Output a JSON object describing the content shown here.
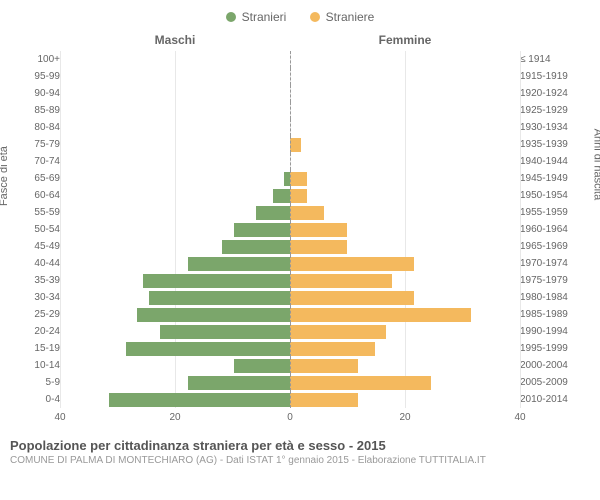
{
  "legend": {
    "male": {
      "label": "Stranieri",
      "color": "#7ba66b"
    },
    "female": {
      "label": "Straniere",
      "color": "#f4b95e"
    }
  },
  "headers": {
    "male": "Maschi",
    "female": "Femmine"
  },
  "axis": {
    "left_label": "Fasce di età",
    "right_label": "Anni di nascita",
    "max": 40,
    "ticks": [
      40,
      20,
      0,
      20,
      40
    ]
  },
  "colors": {
    "male_bar": "#7ba66b",
    "female_bar": "#f4b95e",
    "grid": "#e8e8e8",
    "text": "#666666",
    "background": "#ffffff"
  },
  "rows": [
    {
      "age": "100+",
      "year": "≤ 1914",
      "m": 0,
      "f": 0
    },
    {
      "age": "95-99",
      "year": "1915-1919",
      "m": 0,
      "f": 0
    },
    {
      "age": "90-94",
      "year": "1920-1924",
      "m": 0,
      "f": 0
    },
    {
      "age": "85-89",
      "year": "1925-1929",
      "m": 0,
      "f": 0
    },
    {
      "age": "80-84",
      "year": "1930-1934",
      "m": 0,
      "f": 0
    },
    {
      "age": "75-79",
      "year": "1935-1939",
      "m": 0,
      "f": 2
    },
    {
      "age": "70-74",
      "year": "1940-1944",
      "m": 0,
      "f": 0
    },
    {
      "age": "65-69",
      "year": "1945-1949",
      "m": 1,
      "f": 3
    },
    {
      "age": "60-64",
      "year": "1950-1954",
      "m": 3,
      "f": 3
    },
    {
      "age": "55-59",
      "year": "1955-1959",
      "m": 6,
      "f": 6
    },
    {
      "age": "50-54",
      "year": "1960-1964",
      "m": 10,
      "f": 10
    },
    {
      "age": "45-49",
      "year": "1965-1969",
      "m": 12,
      "f": 10
    },
    {
      "age": "40-44",
      "year": "1970-1974",
      "m": 18,
      "f": 22
    },
    {
      "age": "35-39",
      "year": "1975-1979",
      "m": 26,
      "f": 18
    },
    {
      "age": "30-34",
      "year": "1980-1984",
      "m": 25,
      "f": 22
    },
    {
      "age": "25-29",
      "year": "1985-1989",
      "m": 27,
      "f": 32
    },
    {
      "age": "20-24",
      "year": "1990-1994",
      "m": 23,
      "f": 17
    },
    {
      "age": "15-19",
      "year": "1995-1999",
      "m": 29,
      "f": 15
    },
    {
      "age": "10-14",
      "year": "2000-2004",
      "m": 10,
      "f": 12
    },
    {
      "age": "5-9",
      "year": "2005-2009",
      "m": 18,
      "f": 25
    },
    {
      "age": "0-4",
      "year": "2010-2014",
      "m": 32,
      "f": 12
    }
  ],
  "footer": {
    "title": "Popolazione per cittadinanza straniera per età e sesso - 2015",
    "sub": "COMUNE DI PALMA DI MONTECHIARO (AG) - Dati ISTAT 1° gennaio 2015 - Elaborazione TUTTITALIA.IT"
  }
}
